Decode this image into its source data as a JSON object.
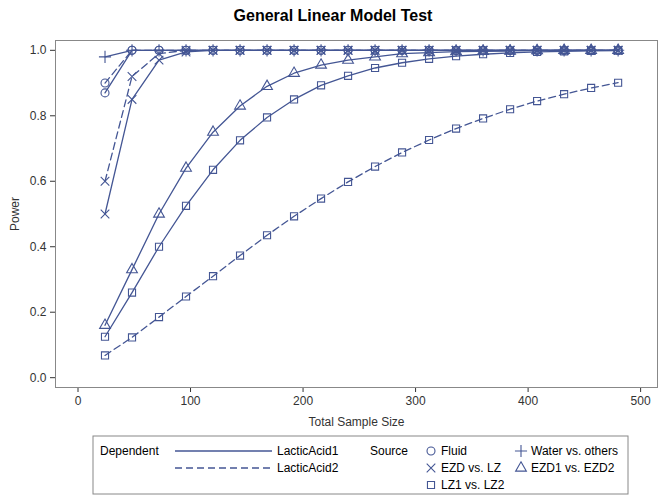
{
  "chart_data": {
    "type": "line",
    "title": "General Linear Model Test",
    "x_label": "Total Sample Size",
    "y_label": "Power",
    "xlim": [
      -20,
      515
    ],
    "ylim": [
      -0.03,
      1.03
    ],
    "xticks": [
      0,
      100,
      200,
      300,
      400,
      500
    ],
    "yticks": [
      {
        "value": 0,
        "label": "0.0"
      },
      0.2,
      0.4,
      0.6,
      0.8,
      {
        "value": 1,
        "label": "1.0"
      }
    ],
    "x": [
      24,
      48,
      72,
      96,
      120,
      144,
      168,
      192,
      216,
      240,
      264,
      288,
      312,
      336,
      360,
      384,
      408,
      432,
      456,
      480
    ],
    "legend_groups": [
      {
        "title": "Dependent",
        "entries": [
          {
            "label": "LacticAcid1",
            "line_style": "solid"
          },
          {
            "label": "LacticAcid2",
            "line_style": "dashed"
          }
        ]
      },
      {
        "title": "Source",
        "entries": [
          {
            "label": "Fluid",
            "marker": "circle"
          },
          {
            "label": "Water vs. others",
            "marker": "plus"
          },
          {
            "label": "EZD vs. LZ",
            "marker": "x"
          },
          {
            "label": "EZD1 vs. EZD2",
            "marker": "triangle"
          },
          {
            "label": "LZ1 vs. LZ2",
            "marker": "square"
          }
        ]
      }
    ],
    "series": [
      {
        "dependent": "LacticAcid1",
        "source": "Fluid",
        "line_style": "solid",
        "marker": "circle",
        "color": "#445694",
        "values": [
          0.87,
          1.0,
          1.0,
          1.0,
          1.0,
          1.0,
          1.0,
          1.0,
          1.0,
          1.0,
          1.0,
          1.0,
          1.0,
          1.0,
          1.0,
          1.0,
          1.0,
          1.0,
          1.0,
          1.0
        ]
      },
      {
        "dependent": "LacticAcid2",
        "source": "Fluid",
        "line_style": "dashed",
        "marker": "circle",
        "color": "#445694",
        "values": [
          0.9,
          1.0,
          1.0,
          1.0,
          1.0,
          1.0,
          1.0,
          1.0,
          1.0,
          1.0,
          1.0,
          1.0,
          1.0,
          1.0,
          1.0,
          1.0,
          1.0,
          1.0,
          1.0,
          1.0
        ]
      },
      {
        "dependent": "LacticAcid1",
        "source": "Water vs. others",
        "line_style": "solid",
        "marker": "plus",
        "color": "#445694",
        "values": [
          0.98,
          1.0,
          1.0,
          1.0,
          1.0,
          1.0,
          1.0,
          1.0,
          1.0,
          1.0,
          1.0,
          1.0,
          1.0,
          1.0,
          1.0,
          1.0,
          1.0,
          1.0,
          1.0,
          1.0
        ]
      },
      {
        "dependent": "LacticAcid1",
        "source": "EZD vs. LZ",
        "line_style": "solid",
        "marker": "x",
        "color": "#445694",
        "values": [
          0.5,
          0.85,
          0.97,
          0.995,
          1.0,
          1.0,
          1.0,
          1.0,
          1.0,
          1.0,
          1.0,
          1.0,
          1.0,
          1.0,
          1.0,
          1.0,
          1.0,
          1.0,
          1.0,
          1.0
        ]
      },
      {
        "dependent": "LacticAcid2",
        "source": "EZD vs. LZ",
        "line_style": "dashed",
        "marker": "x",
        "color": "#445694",
        "values": [
          0.6,
          0.92,
          0.99,
          1.0,
          1.0,
          1.0,
          1.0,
          1.0,
          1.0,
          1.0,
          1.0,
          1.0,
          1.0,
          1.0,
          1.0,
          1.0,
          1.0,
          1.0,
          1.0,
          1.0
        ]
      },
      {
        "dependent": "LacticAcid1",
        "source": "EZD1 vs. EZD2",
        "line_style": "solid",
        "marker": "triangle",
        "color": "#445694",
        "values": [
          0.16,
          0.33,
          0.5,
          0.64,
          0.75,
          0.83,
          0.89,
          0.93,
          0.955,
          0.97,
          0.98,
          0.99,
          0.993,
          0.996,
          0.997,
          0.998,
          0.999,
          1.0,
          1.0,
          1.0
        ]
      },
      {
        "dependent": "LacticAcid1",
        "source": "LZ1 vs. LZ2",
        "line_style": "solid",
        "marker": "square",
        "color": "#445694",
        "values": [
          0.125,
          0.26,
          0.4,
          0.525,
          0.635,
          0.725,
          0.795,
          0.85,
          0.893,
          0.922,
          0.946,
          0.962,
          0.974,
          0.982,
          0.988,
          0.992,
          0.995,
          0.997,
          0.998,
          0.999
        ]
      },
      {
        "dependent": "LacticAcid2",
        "source": "LZ1 vs. LZ2",
        "line_style": "dashed",
        "marker": "square",
        "color": "#445694",
        "values": [
          0.068,
          0.123,
          0.185,
          0.248,
          0.31,
          0.373,
          0.435,
          0.493,
          0.547,
          0.598,
          0.645,
          0.688,
          0.726,
          0.761,
          0.792,
          0.82,
          0.845,
          0.866,
          0.885,
          0.901
        ]
      }
    ]
  }
}
